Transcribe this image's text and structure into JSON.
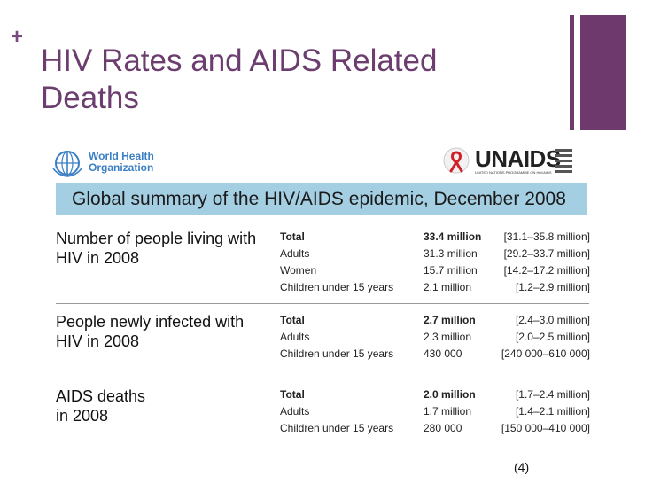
{
  "slide": {
    "plus": "+",
    "title": "HIV Rates and AIDS Related Deaths",
    "reference": "(4)"
  },
  "logos": {
    "who_name": "World Health Organization",
    "unaids_name": "UNAIDS",
    "unaids_sub": "UNITED NATIONS PROGRAMME ON HIV/AIDS"
  },
  "figure": {
    "banner": "Global summary of the HIV/AIDS epidemic, December 2008",
    "sections": [
      {
        "heading": "Number of people living with HIV in 2008",
        "rows": [
          {
            "label": "Total",
            "value": "33.4 million",
            "range": "[31.1–35.8 million]"
          },
          {
            "label": "Adults",
            "value": "31.3 million",
            "range": "[29.2–33.7 million]"
          },
          {
            "label": "Women",
            "value": "15.7 million",
            "range": "[14.2–17.2 million]"
          },
          {
            "label": "Children under 15 years",
            "value": "2.1 million",
            "range": "[1.2–2.9 million]"
          }
        ]
      },
      {
        "heading": "People newly infected with HIV in 2008",
        "rows": [
          {
            "label": "Total",
            "value": "2.7 million",
            "range": "[2.4–3.0 million]"
          },
          {
            "label": "Adults",
            "value": "2.3 million",
            "range": "[2.0–2.5 million]"
          },
          {
            "label": "Children under 15 years",
            "value": "430 000",
            "range": "[240 000–610 000]"
          }
        ]
      },
      {
        "heading": "AIDS deaths in 2008",
        "rows": [
          {
            "label": "Total",
            "value": "2.0 million",
            "range": "[1.7–2.4 million]"
          },
          {
            "label": "Adults",
            "value": "1.7 million",
            "range": "[1.4–2.1 million]"
          },
          {
            "label": "Children under 15 years",
            "value": "280 000",
            "range": "[150 000–410 000]"
          }
        ]
      }
    ]
  },
  "colors": {
    "accent": "#6e3a6e",
    "banner": "#a4cfe3"
  }
}
